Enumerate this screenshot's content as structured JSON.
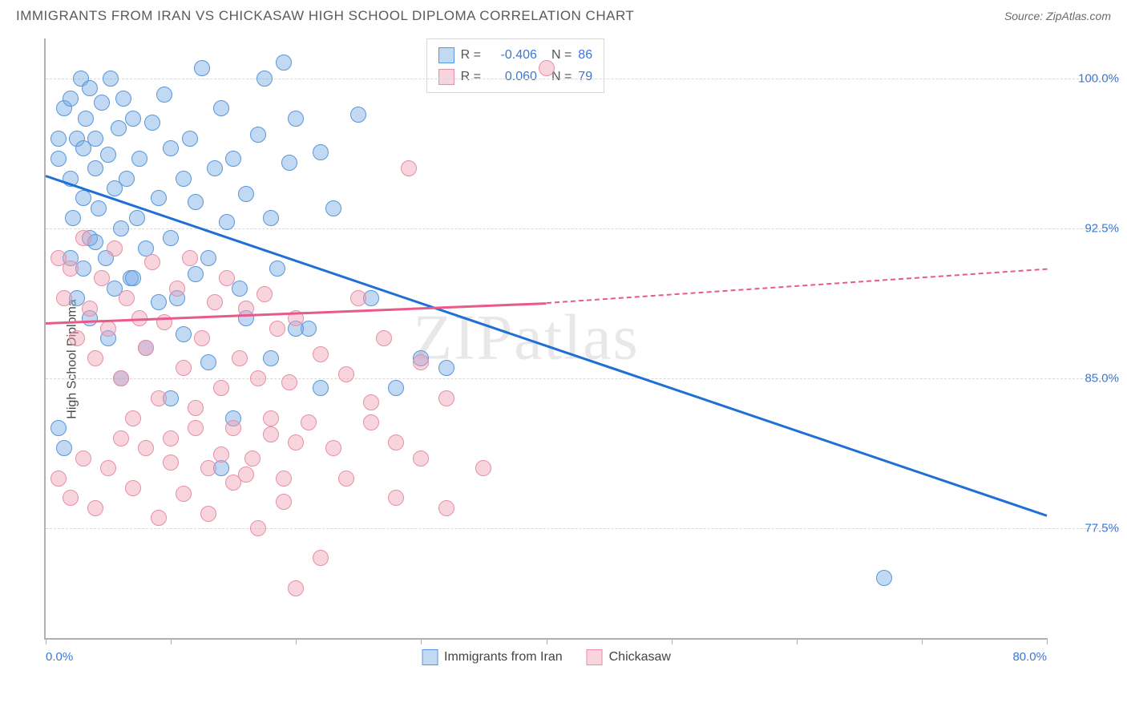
{
  "header": {
    "title": "IMMIGRANTS FROM IRAN VS CHICKASAW HIGH SCHOOL DIPLOMA CORRELATION CHART",
    "source": "Source: ZipAtlas.com"
  },
  "watermark": "ZIPatlas",
  "chart": {
    "type": "scatter",
    "ylabel": "High School Diploma",
    "xlim": [
      0,
      80
    ],
    "ylim": [
      72,
      102
    ],
    "yticks": [
      77.5,
      85.0,
      92.5,
      100.0
    ],
    "ytick_labels": [
      "77.5%",
      "85.0%",
      "92.5%",
      "100.0%"
    ],
    "xticks": [
      0,
      10,
      20,
      30,
      40,
      50,
      60,
      70,
      80
    ],
    "xtick_labels": {
      "0": "0.0%",
      "80": "80.0%"
    },
    "background_color": "#ffffff",
    "grid_color": "#d8d8d8",
    "axis_color": "#b0b0b0",
    "tick_label_color": "#3a77d6",
    "series": [
      {
        "name": "Immigrants from Iran",
        "color_fill": "rgba(120,170,230,0.45)",
        "color_stroke": "#5a96d8",
        "marker_radius": 10,
        "trend_color": "#1f6fd4",
        "trend_solid": {
          "x1": 0,
          "y1": 95.2,
          "x2": 80,
          "y2": 78.2
        },
        "points": [
          [
            1,
            96
          ],
          [
            1,
            97
          ],
          [
            1.5,
            98.5
          ],
          [
            2,
            95
          ],
          [
            2,
            99
          ],
          [
            2.2,
            93
          ],
          [
            2.5,
            97
          ],
          [
            2.8,
            100
          ],
          [
            3,
            96.5
          ],
          [
            3,
            94
          ],
          [
            3.2,
            98
          ],
          [
            3.5,
            92
          ],
          [
            3.5,
            99.5
          ],
          [
            4,
            97
          ],
          [
            4,
            95.5
          ],
          [
            4.2,
            93.5
          ],
          [
            4.5,
            98.8
          ],
          [
            4.8,
            91
          ],
          [
            5,
            96.2
          ],
          [
            5.2,
            100
          ],
          [
            5.5,
            94.5
          ],
          [
            5.8,
            97.5
          ],
          [
            6,
            92.5
          ],
          [
            6.2,
            99
          ],
          [
            6.5,
            95
          ],
          [
            6.8,
            90
          ],
          [
            7,
            98
          ],
          [
            7.3,
            93
          ],
          [
            7.5,
            96
          ],
          [
            8,
            91.5
          ],
          [
            8.5,
            97.8
          ],
          [
            9,
            94
          ],
          [
            9.5,
            99.2
          ],
          [
            10,
            92
          ],
          [
            10,
            96.5
          ],
          [
            10.5,
            89
          ],
          [
            11,
            95
          ],
          [
            11.5,
            97
          ],
          [
            12,
            93.8
          ],
          [
            12.5,
            100.5
          ],
          [
            13,
            91
          ],
          [
            13.5,
            95.5
          ],
          [
            14,
            98.5
          ],
          [
            14.5,
            92.8
          ],
          [
            15,
            96
          ],
          [
            15.5,
            89.5
          ],
          [
            16,
            94.2
          ],
          [
            17,
            97.2
          ],
          [
            17.5,
            100
          ],
          [
            18,
            93
          ],
          [
            18.5,
            90.5
          ],
          [
            19,
            100.8
          ],
          [
            19.5,
            95.8
          ],
          [
            20,
            98
          ],
          [
            21,
            87.5
          ],
          [
            22,
            96.3
          ],
          [
            23,
            93.5
          ],
          [
            25,
            98.2
          ],
          [
            26,
            89
          ],
          [
            28,
            84.5
          ],
          [
            30,
            86
          ],
          [
            32,
            85.5
          ],
          [
            1,
            82.5
          ],
          [
            1.5,
            81.5
          ],
          [
            2,
            91
          ],
          [
            2.5,
            89
          ],
          [
            3,
            90.5
          ],
          [
            3.5,
            88
          ],
          [
            4,
            91.8
          ],
          [
            5,
            87
          ],
          [
            5.5,
            89.5
          ],
          [
            6,
            85
          ],
          [
            7,
            90
          ],
          [
            8,
            86.5
          ],
          [
            9,
            88.8
          ],
          [
            10,
            84
          ],
          [
            11,
            87.2
          ],
          [
            12,
            90.2
          ],
          [
            13,
            85.8
          ],
          [
            14,
            80.5
          ],
          [
            15,
            83
          ],
          [
            16,
            88
          ],
          [
            18,
            86
          ],
          [
            20,
            87.5
          ],
          [
            22,
            84.5
          ],
          [
            67,
            75
          ]
        ],
        "R": "-0.406",
        "N": 86
      },
      {
        "name": "Chickasaw",
        "color_fill": "rgba(240,160,180,0.45)",
        "color_stroke": "#e68fa8",
        "marker_radius": 10,
        "trend_color": "#e85a8a",
        "trend_solid": {
          "x1": 0,
          "y1": 87.8,
          "x2": 40,
          "y2": 88.8
        },
        "trend_dashed": {
          "x1": 40,
          "y1": 88.8,
          "x2": 80,
          "y2": 90.5
        },
        "points": [
          [
            1,
            91
          ],
          [
            1.5,
            89
          ],
          [
            2,
            90.5
          ],
          [
            2.5,
            87
          ],
          [
            3,
            92
          ],
          [
            3.5,
            88.5
          ],
          [
            4,
            86
          ],
          [
            4.5,
            90
          ],
          [
            5,
            87.5
          ],
          [
            5.5,
            91.5
          ],
          [
            6,
            85
          ],
          [
            6.5,
            89
          ],
          [
            7,
            83
          ],
          [
            7.5,
            88
          ],
          [
            8,
            86.5
          ],
          [
            8.5,
            90.8
          ],
          [
            9,
            84
          ],
          [
            9.5,
            87.8
          ],
          [
            10,
            82
          ],
          [
            10.5,
            89.5
          ],
          [
            11,
            85.5
          ],
          [
            11.5,
            91
          ],
          [
            12,
            83.5
          ],
          [
            12.5,
            87
          ],
          [
            13,
            80.5
          ],
          [
            13.5,
            88.8
          ],
          [
            14,
            84.5
          ],
          [
            14.5,
            90
          ],
          [
            15,
            82.5
          ],
          [
            15.5,
            86
          ],
          [
            16,
            88.5
          ],
          [
            16.5,
            81
          ],
          [
            17,
            85
          ],
          [
            17.5,
            89.2
          ],
          [
            18,
            83
          ],
          [
            18.5,
            87.5
          ],
          [
            19,
            80
          ],
          [
            19.5,
            84.8
          ],
          [
            20,
            88
          ],
          [
            21,
            82.8
          ],
          [
            22,
            86.2
          ],
          [
            23,
            81.5
          ],
          [
            24,
            85.2
          ],
          [
            25,
            89
          ],
          [
            26,
            83.8
          ],
          [
            27,
            87
          ],
          [
            28,
            81.8
          ],
          [
            30,
            85.8
          ],
          [
            32,
            84
          ],
          [
            1,
            80
          ],
          [
            2,
            79
          ],
          [
            3,
            81
          ],
          [
            4,
            78.5
          ],
          [
            5,
            80.5
          ],
          [
            6,
            82
          ],
          [
            7,
            79.5
          ],
          [
            8,
            81.5
          ],
          [
            9,
            78
          ],
          [
            10,
            80.8
          ],
          [
            11,
            79.2
          ],
          [
            12,
            82.5
          ],
          [
            13,
            78.2
          ],
          [
            14,
            81.2
          ],
          [
            15,
            79.8
          ],
          [
            16,
            80.2
          ],
          [
            17,
            77.5
          ],
          [
            18,
            82.2
          ],
          [
            19,
            78.8
          ],
          [
            20,
            81.8
          ],
          [
            22,
            76
          ],
          [
            24,
            80
          ],
          [
            26,
            82.8
          ],
          [
            28,
            79
          ],
          [
            30,
            81
          ],
          [
            32,
            78.5
          ],
          [
            35,
            80.5
          ],
          [
            20,
            74.5
          ],
          [
            29,
            95.5
          ],
          [
            40,
            100.5
          ]
        ],
        "R": "0.060",
        "N": 79
      }
    ],
    "legend_box": {
      "R_label": "R =",
      "N_label": "N ="
    },
    "bottom_legend": [
      {
        "label": "Immigrants from Iran",
        "fill": "rgba(120,170,230,0.45)",
        "stroke": "#5a96d8"
      },
      {
        "label": "Chickasaw",
        "fill": "rgba(240,160,180,0.45)",
        "stroke": "#e68fa8"
      }
    ]
  }
}
